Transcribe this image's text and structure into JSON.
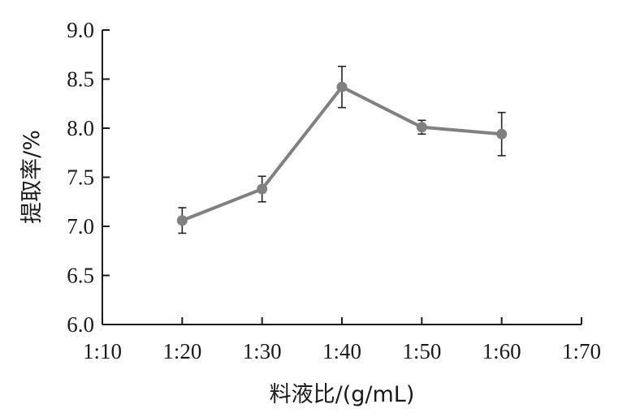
{
  "chart_data": {
    "type": "line",
    "x_tick_labels": [
      "1:10",
      "1:20",
      "1:30",
      "1:40",
      "1:50",
      "1:60",
      "1:70"
    ],
    "y_tick_labels": [
      "6.0",
      "6.5",
      "7.0",
      "7.5",
      "8.0",
      "8.5",
      "9.0"
    ],
    "ylim": [
      6.0,
      9.0
    ],
    "xlabel": "料液比/(g/mL)",
    "ylabel": "提取率/%",
    "series": [
      {
        "categories": [
          "1:20",
          "1:30",
          "1:40",
          "1:50",
          "1:60"
        ],
        "values": [
          7.06,
          7.38,
          8.42,
          8.01,
          7.94
        ],
        "errors": [
          0.13,
          0.13,
          0.21,
          0.07,
          0.22
        ]
      }
    ],
    "line_color": "#808080",
    "errorbar_color": "#2a2020",
    "grid": false,
    "legend": "none"
  }
}
